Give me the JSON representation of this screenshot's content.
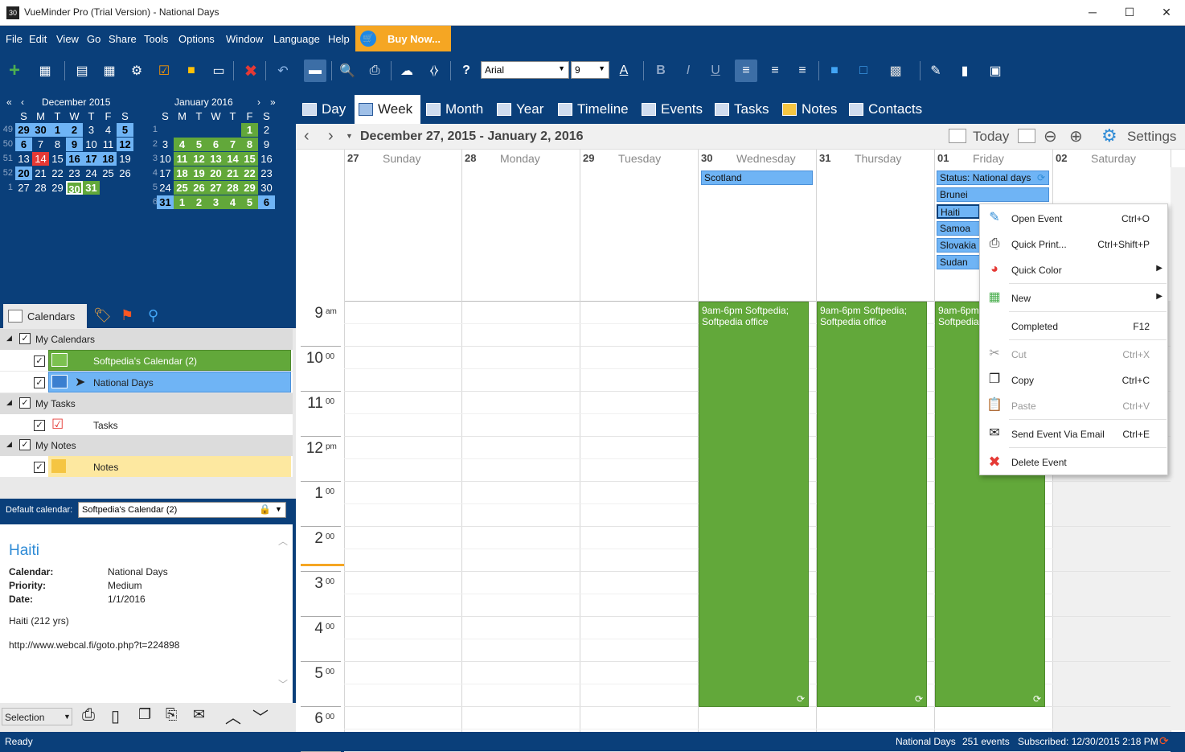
{
  "window": {
    "title": "VueMinder Pro (Trial Version) - National Days",
    "icon_text": "30",
    "min": "─",
    "max": "☐",
    "close": "✕"
  },
  "menu": [
    "File",
    "Edit",
    "View",
    "Go",
    "Share",
    "Tools",
    "Options",
    "Window",
    "Language",
    "Help"
  ],
  "buy_label": "Buy Now...",
  "toolbar": {
    "font": "Arial",
    "size": "9"
  },
  "mini1": {
    "title": "December 2015",
    "dow": [
      "S",
      "M",
      "T",
      "W",
      "T",
      "F",
      "S"
    ],
    "weeks": [
      "49",
      "50",
      "51",
      "52",
      "1"
    ],
    "rows": [
      [
        "29",
        "30",
        "1",
        "2",
        "3",
        "4",
        "5"
      ],
      [
        "6",
        "7",
        "8",
        "9",
        "10",
        "11",
        "12"
      ],
      [
        "13",
        "14",
        "15",
        "16",
        "17",
        "18",
        "19"
      ],
      [
        "20",
        "21",
        "22",
        "23",
        "24",
        "25",
        "26"
      ],
      [
        "27",
        "28",
        "29",
        "30",
        "31",
        "",
        ""
      ]
    ]
  },
  "mini2": {
    "title": "January 2016",
    "dow": [
      "S",
      "M",
      "T",
      "W",
      "T",
      "F",
      "S"
    ],
    "weeks": [
      "1",
      "2",
      "3",
      "4",
      "5",
      "6"
    ],
    "rows": [
      [
        "",
        "",
        "",
        "",
        "",
        "1",
        "2"
      ],
      [
        "3",
        "4",
        "5",
        "6",
        "7",
        "8",
        "9"
      ],
      [
        "10",
        "11",
        "12",
        "13",
        "14",
        "15",
        "16"
      ],
      [
        "17",
        "18",
        "19",
        "20",
        "21",
        "22",
        "23"
      ],
      [
        "24",
        "25",
        "26",
        "27",
        "28",
        "29",
        "30"
      ],
      [
        "31",
        "1",
        "2",
        "3",
        "4",
        "5",
        "6"
      ]
    ]
  },
  "tabs": {
    "calendars": "Calendars"
  },
  "tree": {
    "my_calendars": "My Calendars",
    "cal1": "Softpedia's Calendar (2)",
    "cal2": "National Days",
    "my_tasks": "My Tasks",
    "tasks": "Tasks",
    "my_notes": "My Notes",
    "notes": "Notes"
  },
  "default_cal": {
    "label": "Default calendar:",
    "value": "Softpedia's Calendar (2)"
  },
  "preview": {
    "title": "Haiti",
    "calendar_k": "Calendar:",
    "calendar_v": "National Days",
    "priority_k": "Priority:",
    "priority_v": "Medium",
    "date_k": "Date:",
    "date_v": "1/1/2016",
    "desc": "Haiti (212 yrs)",
    "url": "http://www.webcal.fi/goto.php?t=224898"
  },
  "prevbar": {
    "mode": "Selection"
  },
  "views": [
    "Day",
    "Week",
    "Month",
    "Year",
    "Timeline",
    "Events",
    "Tasks",
    "Notes",
    "Contacts"
  ],
  "datebar": {
    "range": "December 27, 2015 - January 2, 2016",
    "today": "Today",
    "settings": "Settings"
  },
  "days": [
    {
      "n": "27",
      "name": "Sunday"
    },
    {
      "n": "28",
      "name": "Monday"
    },
    {
      "n": "29",
      "name": "Tuesday"
    },
    {
      "n": "30",
      "name": "Wednesday"
    },
    {
      "n": "31",
      "name": "Thursday"
    },
    {
      "n": "01",
      "name": "Friday"
    },
    {
      "n": "02",
      "name": "Saturday"
    }
  ],
  "allday": {
    "wed": "Scotland",
    "fri": [
      "Status: National days",
      "Brunei",
      "Haiti",
      "Samoa",
      "Slovakia",
      "Sudan"
    ]
  },
  "hours": [
    {
      "h": "9",
      "s": "am"
    },
    {
      "h": "10",
      "s": "00"
    },
    {
      "h": "11",
      "s": "00"
    },
    {
      "h": "12",
      "s": "pm"
    },
    {
      "h": "1",
      "s": "00"
    },
    {
      "h": "2",
      "s": "00"
    },
    {
      "h": "3",
      "s": "00"
    },
    {
      "h": "4",
      "s": "00"
    },
    {
      "h": "5",
      "s": "00"
    },
    {
      "h": "6",
      "s": "00"
    }
  ],
  "event": {
    "line1": "9am-6pm  Softpedia;",
    "line2": "Softpedia office"
  },
  "ctx": {
    "open": "Open Event",
    "open_sc": "Ctrl+O",
    "print": "Quick Print...",
    "print_sc": "Ctrl+Shift+P",
    "color": "Quick Color",
    "new": "New",
    "completed": "Completed",
    "completed_sc": "F12",
    "cut": "Cut",
    "cut_sc": "Ctrl+X",
    "copy": "Copy",
    "copy_sc": "Ctrl+C",
    "paste": "Paste",
    "paste_sc": "Ctrl+V",
    "send": "Send Event Via Email",
    "send_sc": "Ctrl+E",
    "delete": "Delete Event"
  },
  "status": {
    "left": "Ready",
    "cal": "National Days",
    "count": "251 events",
    "sub": "Subscribed: 12/30/2015 2:18 PM"
  },
  "colors": {
    "accent": "#0a3f7a",
    "event": "#62a83a",
    "allday": "#6fb4f5",
    "today": "#e53935"
  }
}
